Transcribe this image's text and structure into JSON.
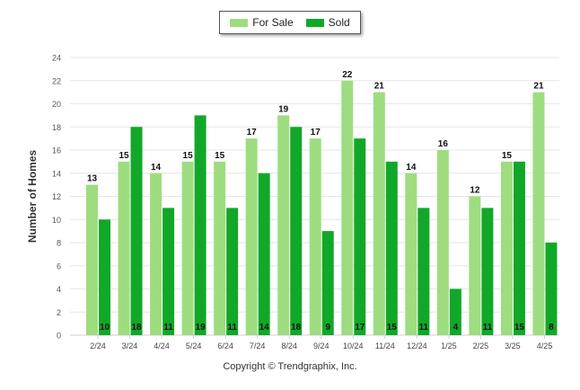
{
  "chart_data": {
    "type": "bar",
    "categories": [
      "2/24",
      "3/24",
      "4/24",
      "5/24",
      "6/24",
      "7/24",
      "8/24",
      "9/24",
      "10/24",
      "11/24",
      "12/24",
      "1/25",
      "2/25",
      "3/25",
      "4/25"
    ],
    "series": [
      {
        "name": "For Sale",
        "values": [
          13,
          15,
          14,
          15,
          15,
          17,
          19,
          17,
          22,
          21,
          14,
          16,
          12,
          15,
          21
        ],
        "color": "#9edd7f"
      },
      {
        "name": "Sold",
        "values": [
          10,
          18,
          11,
          19,
          11,
          14,
          18,
          9,
          17,
          15,
          11,
          4,
          11,
          15,
          8
        ],
        "color": "#11a829"
      }
    ],
    "title": "",
    "xlabel": "",
    "ylabel": "Number of Homes",
    "ylim": [
      0,
      24
    ],
    "yticks": [
      0,
      2,
      4,
      6,
      8,
      10,
      12,
      14,
      16,
      18,
      20,
      22,
      24
    ],
    "grid": true,
    "legend_position": "top-center"
  },
  "footer": {
    "credit": "Copyright © Trendgraphix, Inc."
  }
}
